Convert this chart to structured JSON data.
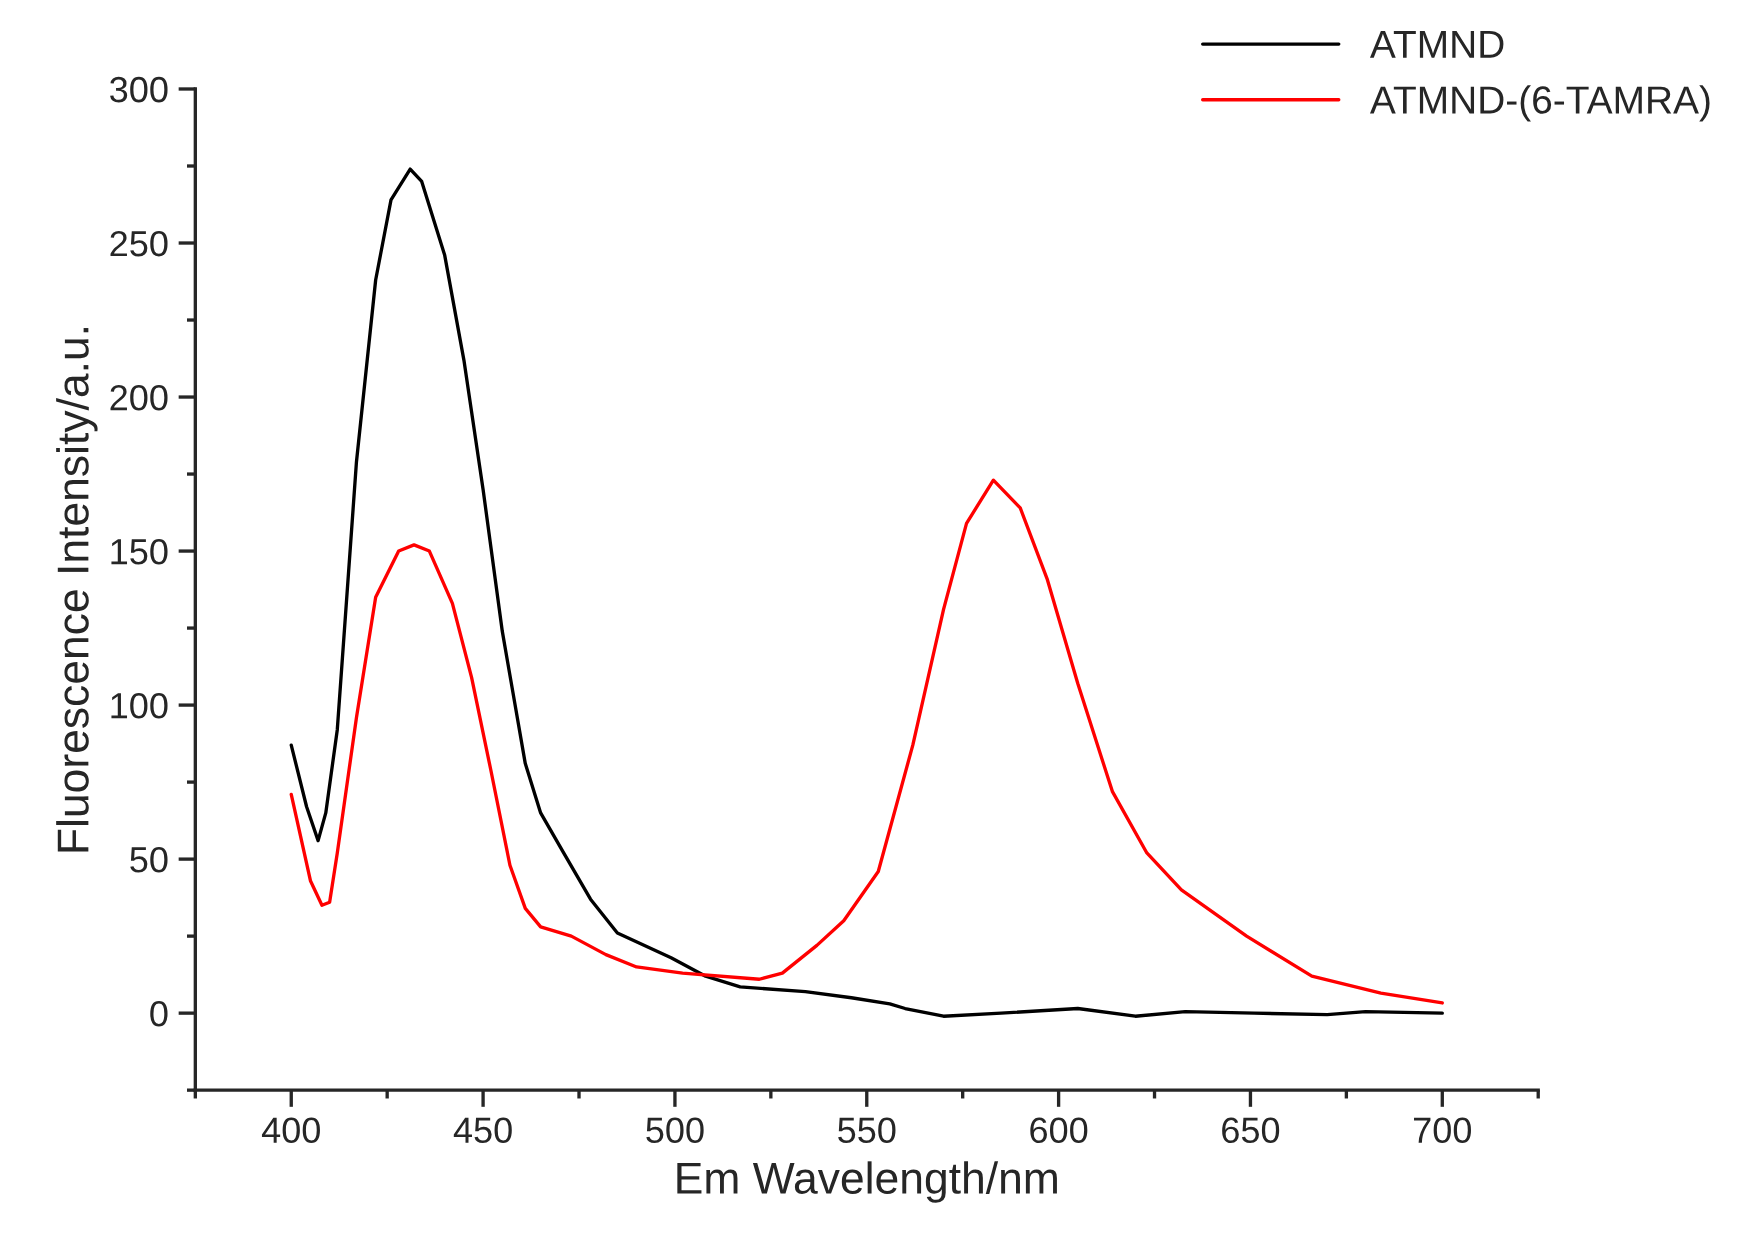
{
  "chart_data": {
    "type": "line",
    "xlabel": "Em Wavelength/nm",
    "ylabel": "Fluorescence Intensity/a.u.",
    "xlim": [
      375,
      725
    ],
    "xticks": [
      400,
      450,
      500,
      550,
      600,
      650,
      700
    ],
    "ylim": [
      -25,
      300
    ],
    "yticks": [
      0,
      50,
      100,
      150,
      200,
      250,
      300
    ],
    "grid": false,
    "legend": "top right",
    "marker": "none",
    "line_style": "solid",
    "series": [
      {
        "name": "ATMND",
        "color": "#000000",
        "x": [
          400,
          404,
          407,
          409,
          412,
          417,
          422,
          426,
          431,
          434,
          440,
          445,
          450,
          455,
          461,
          465,
          471,
          478,
          485,
          499,
          508,
          517,
          534,
          546,
          556,
          560,
          570,
          585,
          605,
          620,
          633,
          651,
          670,
          680,
          700
        ],
        "values": [
          87,
          67,
          56,
          65,
          92,
          179,
          238,
          264,
          274,
          270,
          246,
          212,
          170,
          124,
          81,
          65,
          52,
          37,
          26,
          18,
          12,
          8.5,
          7,
          5,
          3,
          1.5,
          -1,
          0,
          1.5,
          -1,
          0.5,
          0,
          -0.5,
          0.5,
          0
        ]
      },
      {
        "name": "ATMND-(6-TAMRA)",
        "color": "#ff0000",
        "x": [
          400,
          405,
          408,
          410,
          412,
          417,
          422,
          428,
          432,
          436,
          442,
          447,
          452,
          457,
          461,
          465,
          473,
          482,
          490,
          502,
          522,
          528,
          537,
          544,
          553,
          562,
          570,
          576,
          583,
          590,
          597,
          605,
          614,
          623,
          632,
          649,
          666,
          684,
          700
        ],
        "values": [
          71,
          43,
          35,
          36,
          52,
          96,
          135,
          150,
          152,
          150,
          133,
          109,
          79,
          48,
          34,
          28,
          25,
          19,
          15,
          13,
          11,
          13,
          22,
          30,
          46,
          87,
          131,
          159,
          173,
          164,
          141,
          107,
          72,
          52,
          40,
          25,
          12,
          6.5,
          3.3
        ]
      }
    ]
  }
}
